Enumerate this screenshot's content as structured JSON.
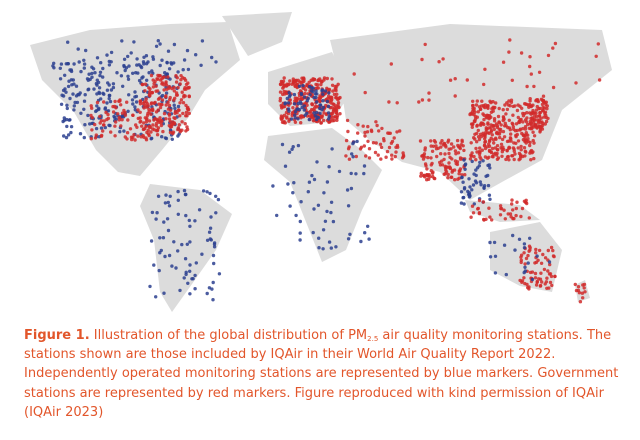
{
  "figure": {
    "caption": {
      "label": "Figure 1.",
      "text_before": "Illustration of the global distribution of PM",
      "subscript": "2.5",
      "text_after": " air quality monitoring stations. The stations shown are those included by IQAir in their World Air Quality Report 2022. Independently operated monitoring stations are represented by blue markers. Government stations are represented by red markers. Figure reproduced with kind permission of IQAir (IQAir 2023)"
    }
  }
}
